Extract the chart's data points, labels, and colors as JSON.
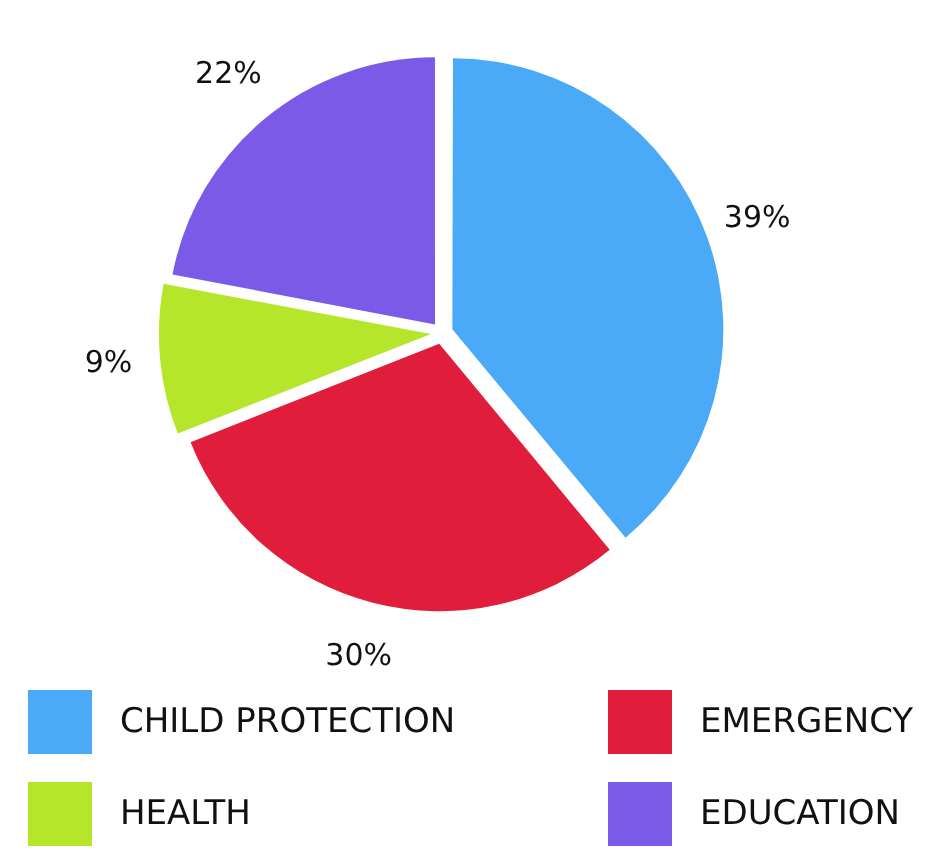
{
  "chart_data": {
    "type": "pie",
    "categories": [
      "CHILD PROTECTION",
      "EMERGENCY",
      "HEALTH",
      "EDUCATION"
    ],
    "values": [
      39,
      30,
      9,
      22
    ],
    "colors": [
      "#4aaaf7",
      "#e01e3c",
      "#b5e62c",
      "#7a5ae6"
    ],
    "value_labels": [
      "39%",
      "30%",
      "9%",
      "22%"
    ],
    "legend": "bottom"
  }
}
